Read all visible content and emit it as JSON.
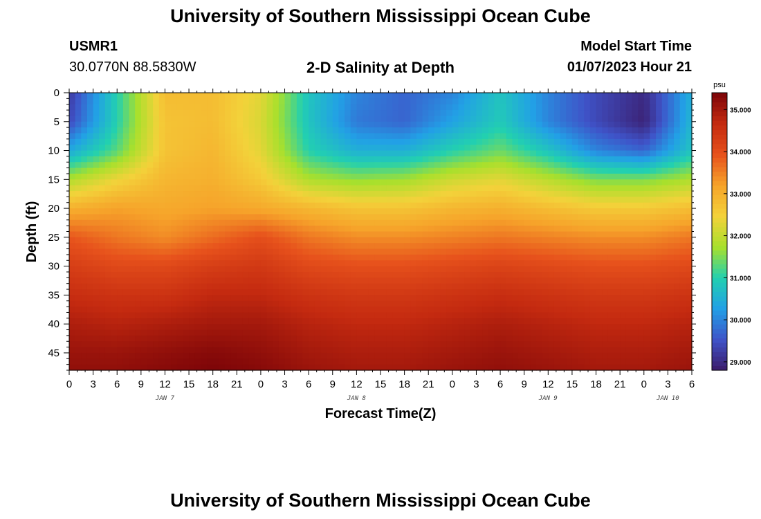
{
  "header": {
    "title": "University of Southern Mississippi Ocean Cube",
    "station": "USMR1",
    "coords": "30.0770N  88.5830W",
    "subtitle": "2-D Salinity at Depth",
    "model_start_label": "Model Start Time",
    "model_start_value": "01/07/2023 Hour 21"
  },
  "footer": {
    "title": "University of Southern Mississippi Ocean Cube"
  },
  "chart_data": {
    "type": "heatmap",
    "title": "2-D Salinity at Depth",
    "xlabel": "Forecast Time(Z)",
    "ylabel": "Depth (ft)",
    "x_tick_labels": [
      "0",
      "3",
      "6",
      "9",
      "12",
      "15",
      "18",
      "21",
      "0",
      "3",
      "6",
      "9",
      "12",
      "15",
      "18",
      "21",
      "0",
      "3",
      "6",
      "9",
      "12",
      "15",
      "18",
      "21",
      "0",
      "3",
      "6"
    ],
    "x_day_labels": [
      {
        "label": "JAN 7",
        "hour": 12
      },
      {
        "label": "JAN 8",
        "hour": 36
      },
      {
        "label": "JAN 9",
        "hour": 60
      },
      {
        "label": "JAN 10",
        "hour": 75
      }
    ],
    "xlim_hours": [
      0,
      78
    ],
    "ylim_ft": [
      0,
      48
    ],
    "y_ticks": [
      0,
      5,
      10,
      15,
      20,
      25,
      30,
      35,
      40,
      45
    ],
    "colorbar": {
      "unit": "psu",
      "range": [
        28.8,
        35.4
      ],
      "ticks": [
        "35.000",
        "34.000",
        "33.000",
        "32.000",
        "31.000",
        "30.000",
        "29.000"
      ],
      "colors": [
        "#3b1b6a",
        "#3f53c8",
        "#22a0e6",
        "#22d0b0",
        "#a8e02c",
        "#f3d23a",
        "#f6a32a",
        "#e7521c",
        "#c42a10",
        "#7d0508"
      ]
    },
    "hours": [
      0,
      6,
      12,
      18,
      24,
      30,
      36,
      42,
      48,
      54,
      60,
      66,
      72,
      78
    ],
    "depths_ft": [
      0,
      5,
      10,
      15,
      20,
      25,
      30,
      35,
      40,
      45,
      48
    ],
    "salinity_psu": [
      [
        29.2,
        31.0,
        32.8,
        32.8,
        32.3,
        30.8,
        30.0,
        29.7,
        30.0,
        30.8,
        30.0,
        29.4,
        29.0,
        30.5
      ],
      [
        29.4,
        31.0,
        32.7,
        32.8,
        32.2,
        30.8,
        29.9,
        29.7,
        30.3,
        30.9,
        30.0,
        29.4,
        28.9,
        30.6
      ],
      [
        30.4,
        31.3,
        32.7,
        32.9,
        32.3,
        31.0,
        30.5,
        30.5,
        31.0,
        31.4,
        30.8,
        30.0,
        29.7,
        30.8
      ],
      [
        31.8,
        32.4,
        32.9,
        33.0,
        32.6,
        31.8,
        31.6,
        31.7,
        32.1,
        32.3,
        31.9,
        31.5,
        31.5,
        31.8
      ],
      [
        33.0,
        33.2,
        33.1,
        33.2,
        33.1,
        32.9,
        32.7,
        32.7,
        32.9,
        33.0,
        32.8,
        32.6,
        32.6,
        32.8
      ],
      [
        33.9,
        33.6,
        33.4,
        33.7,
        34.0,
        33.6,
        33.4,
        33.4,
        33.5,
        33.6,
        33.5,
        33.4,
        33.4,
        33.6
      ],
      [
        34.3,
        34.1,
        34.1,
        34.3,
        34.4,
        34.1,
        34.0,
        34.0,
        34.1,
        34.2,
        34.1,
        34.0,
        34.0,
        34.1
      ],
      [
        34.6,
        34.5,
        34.5,
        34.7,
        34.7,
        34.5,
        34.4,
        34.4,
        34.5,
        34.6,
        34.5,
        34.4,
        34.4,
        34.5
      ],
      [
        34.9,
        34.8,
        34.9,
        35.0,
        35.0,
        34.8,
        34.7,
        34.7,
        34.8,
        34.9,
        34.8,
        34.7,
        34.7,
        34.8
      ],
      [
        35.1,
        35.1,
        35.2,
        35.3,
        35.2,
        35.0,
        34.9,
        34.9,
        35.0,
        35.1,
        35.0,
        34.9,
        34.9,
        35.0
      ],
      [
        35.2,
        35.2,
        35.3,
        35.4,
        35.3,
        35.1,
        35.0,
        35.0,
        35.1,
        35.2,
        35.1,
        35.0,
        35.0,
        35.1
      ]
    ]
  }
}
